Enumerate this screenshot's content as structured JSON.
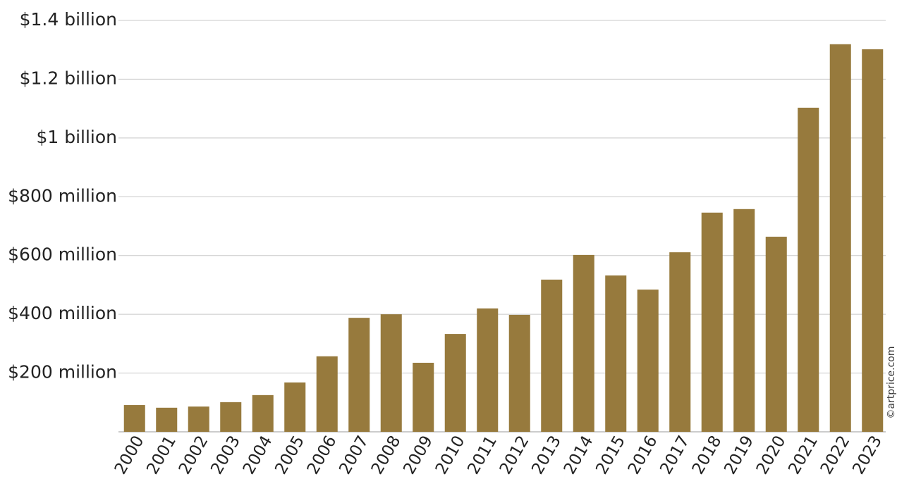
{
  "chart_data": {
    "type": "bar",
    "categories": [
      "2000",
      "2001",
      "2002",
      "2003",
      "2004",
      "2005",
      "2006",
      "2007",
      "2008",
      "2009",
      "2010",
      "2011",
      "2012",
      "2013",
      "2014",
      "2015",
      "2016",
      "2017",
      "2018",
      "2019",
      "2020",
      "2021",
      "2022",
      "2023"
    ],
    "values": [
      91000000,
      82000000,
      86000000,
      101000000,
      125000000,
      168000000,
      257000000,
      388000000,
      400000000,
      235000000,
      333000000,
      420000000,
      398000000,
      518000000,
      602000000,
      532000000,
      484000000,
      611000000,
      746000000,
      758000000,
      664000000,
      1103000000,
      1319000000,
      1302000000
    ],
    "color": "#977a3d",
    "ylim": [
      0,
      1400000000
    ],
    "yticks": [
      {
        "value": 200000000,
        "label": "$200 million"
      },
      {
        "value": 400000000,
        "label": "$400 million"
      },
      {
        "value": 600000000,
        "label": "$600 million"
      },
      {
        "value": 800000000,
        "label": "$800 million"
      },
      {
        "value": 1000000000,
        "label": "$1 billion"
      },
      {
        "value": 1200000000,
        "label": "$1.2 billion"
      },
      {
        "value": 1400000000,
        "label": "$1.4 billion"
      }
    ],
    "grid": true,
    "source": "©artprice.com"
  }
}
